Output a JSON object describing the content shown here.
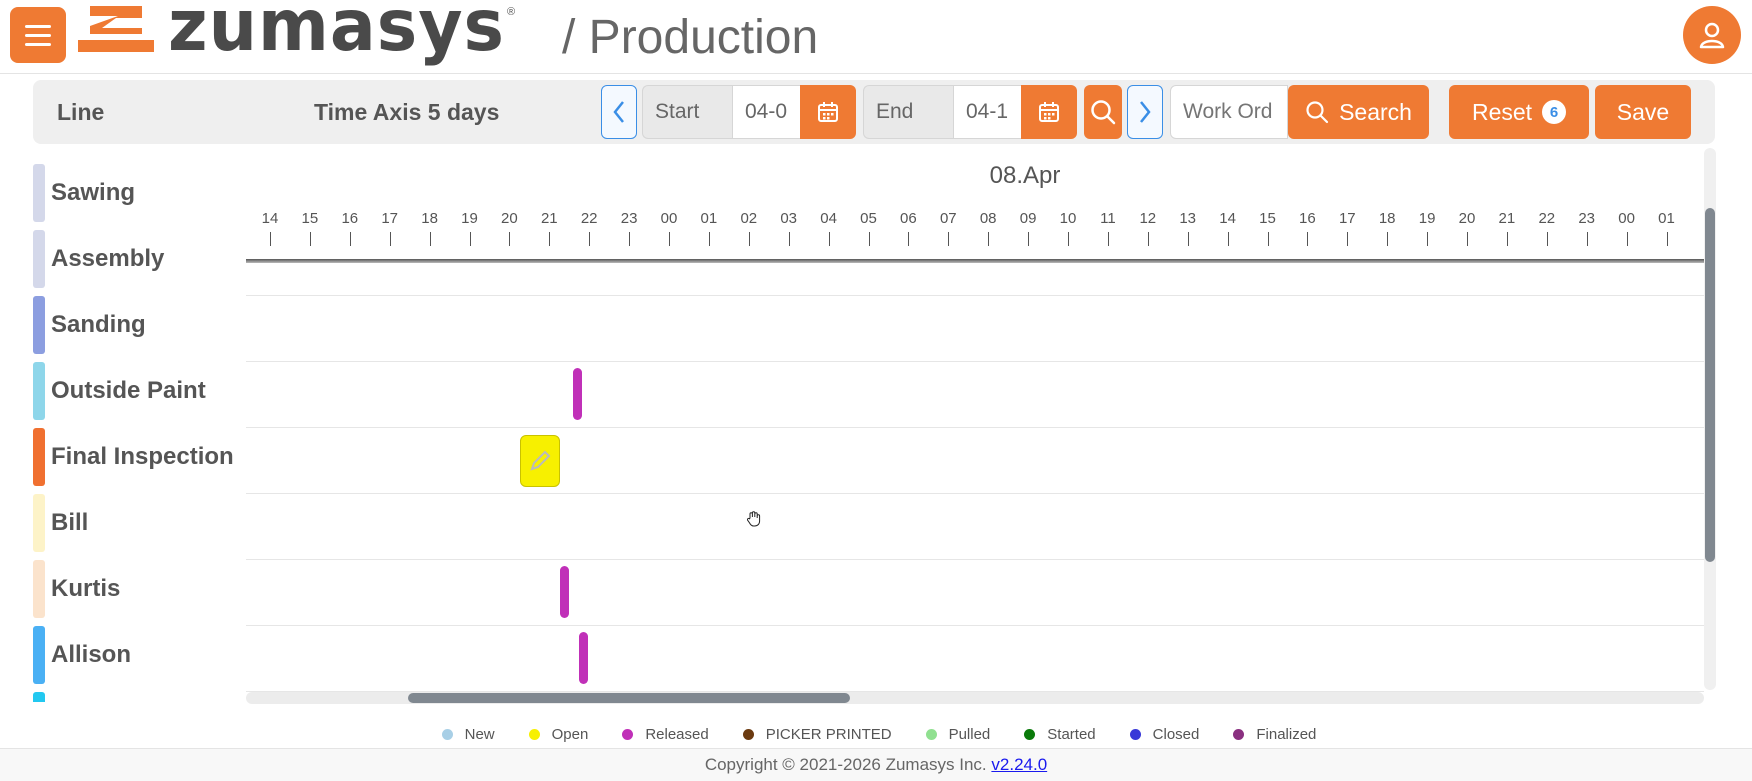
{
  "header": {
    "brand": "zumasys",
    "brand_reg": "®",
    "page_title": "/ Production"
  },
  "toolbar": {
    "line_label": "Line",
    "time_axis_label": "Time Axis 5 days",
    "start_label": "Start",
    "start_value": "04-0",
    "end_label": "End",
    "end_value": "04-1",
    "work_order_placeholder": "Work Ord",
    "search_label": "Search",
    "reset_label": "Reset",
    "reset_count": "6",
    "save_label": "Save"
  },
  "rows": [
    {
      "label": "Sawing",
      "color": "#d4d8ea"
    },
    {
      "label": "Assembly",
      "color": "#d4d8ea"
    },
    {
      "label": "Sanding",
      "color": "#8c9ee0"
    },
    {
      "label": "Outside Paint",
      "color": "#8ed6ea"
    },
    {
      "label": "Final Inspection",
      "color": "#f07030"
    },
    {
      "label": "Bill",
      "color": "#fdf3c8"
    },
    {
      "label": "Kurtis",
      "color": "#fbe3cc"
    },
    {
      "label": "Allison",
      "color": "#4ab0f4"
    }
  ],
  "timeline": {
    "date": "08.Apr",
    "hours": [
      "14",
      "15",
      "16",
      "17",
      "18",
      "19",
      "20",
      "21",
      "22",
      "23",
      "00",
      "01",
      "02",
      "03",
      "04",
      "05",
      "06",
      "07",
      "08",
      "09",
      "10",
      "11",
      "12",
      "13",
      "14",
      "15",
      "16",
      "17",
      "18",
      "19",
      "20",
      "21",
      "22",
      "23",
      "00",
      "01"
    ]
  },
  "legend": [
    {
      "label": "New",
      "color": "#a8cfe6"
    },
    {
      "label": "Open",
      "color": "#f7f000"
    },
    {
      "label": "Released",
      "color": "#c030b8"
    },
    {
      "label": "PICKER PRINTED",
      "color": "#6b3a10"
    },
    {
      "label": "Pulled",
      "color": "#90e090"
    },
    {
      "label": "Started",
      "color": "#0a7a0a"
    },
    {
      "label": "Closed",
      "color": "#3838d8"
    },
    {
      "label": "Finalized",
      "color": "#8a3080"
    }
  ],
  "footer": {
    "copyright": "Copyright © 2021-2026 Zumasys Inc.",
    "version": "v2.24.0"
  },
  "icons": {
    "menu": "menu-icon",
    "user": "user-icon",
    "calendar": "calendar-icon",
    "search": "search-icon",
    "chevron_left": "chevron-left-icon",
    "chevron_right": "chevron-right-icon",
    "edit": "edit-icon"
  }
}
